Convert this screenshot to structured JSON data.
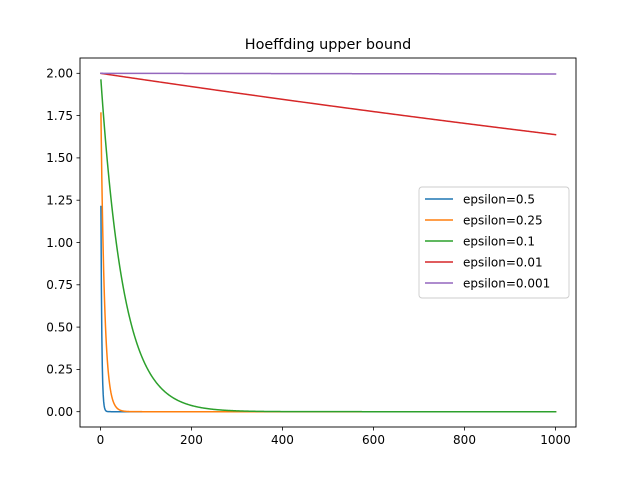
{
  "chart_data": {
    "type": "line",
    "title": "Hoeffding upper bound",
    "xlabel": "",
    "ylabel": "",
    "xlim": [
      -45,
      1045
    ],
    "ylim": [
      -0.0905,
      2.0905
    ],
    "xticks": [
      0,
      200,
      400,
      600,
      800,
      1000
    ],
    "xtick_labels": [
      "0",
      "200",
      "400",
      "600",
      "800",
      "1000"
    ],
    "yticks": [
      0.0,
      0.25,
      0.5,
      0.75,
      1.0,
      1.25,
      1.5,
      1.75,
      2.0
    ],
    "ytick_labels": [
      "0.00",
      "0.25",
      "0.50",
      "0.75",
      "1.00",
      "1.25",
      "1.50",
      "1.75",
      "2.00"
    ],
    "grid": false,
    "legend_position": "center-right",
    "series": [
      {
        "name": "epsilon=0.5",
        "color": "#1f77b4",
        "epsilon": 0.5
      },
      {
        "name": "epsilon=0.25",
        "color": "#ff7f0e",
        "epsilon": 0.25
      },
      {
        "name": "epsilon=0.1",
        "color": "#2ca02c",
        "epsilon": 0.1
      },
      {
        "name": "epsilon=0.01",
        "color": "#d62728",
        "epsilon": 0.01
      },
      {
        "name": "epsilon=0.001",
        "color": "#9467bd",
        "epsilon": 0.001
      }
    ],
    "x_range": [
      1,
      1000
    ]
  }
}
